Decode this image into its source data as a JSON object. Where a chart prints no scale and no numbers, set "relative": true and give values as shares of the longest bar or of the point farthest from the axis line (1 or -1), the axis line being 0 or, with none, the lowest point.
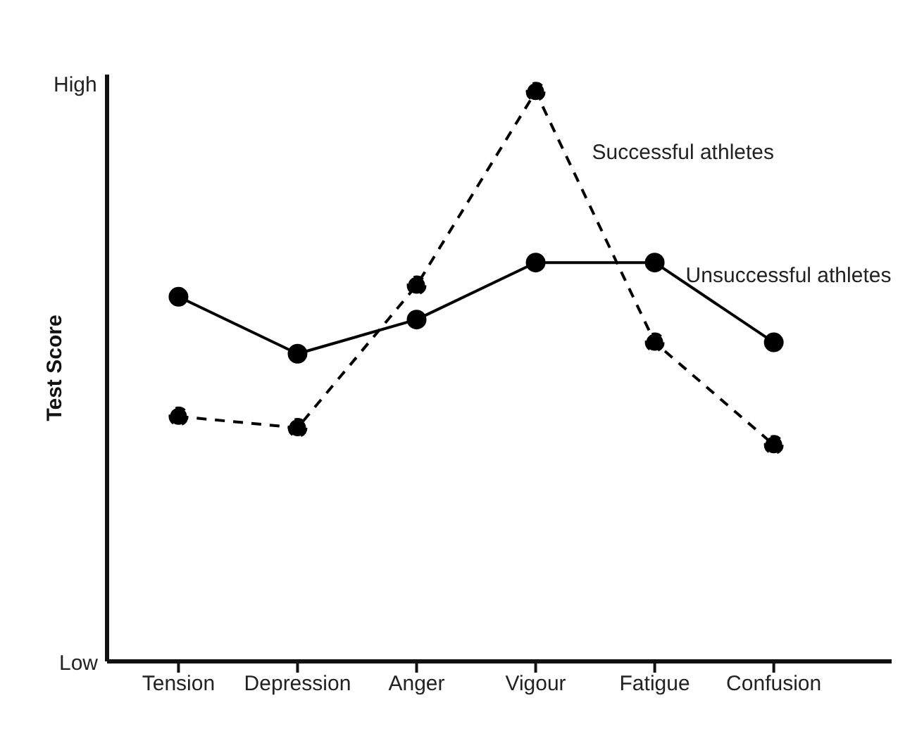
{
  "chart_data": {
    "type": "line",
    "ylabel": "Test Score",
    "categories": [
      "Tension",
      "Depression",
      "Anger",
      "Vigour",
      "Fatigue",
      "Confusion"
    ],
    "relative": true,
    "annotations": [
      "High",
      "Low"
    ],
    "series": [
      {
        "name": "Successful athletes",
        "color": "#000000",
        "line_style": "dashed",
        "values": [
          0.43,
          0.41,
          0.66,
          1,
          0.56,
          0.38
        ]
      },
      {
        "name": "Unsuccessful athletes",
        "color": "#000000",
        "line_style": "solid",
        "values": [
          0.64,
          0.54,
          0.6,
          0.7,
          0.7,
          0.56
        ]
      }
    ],
    "marker": "circle",
    "grid": false,
    "legend": false
  }
}
